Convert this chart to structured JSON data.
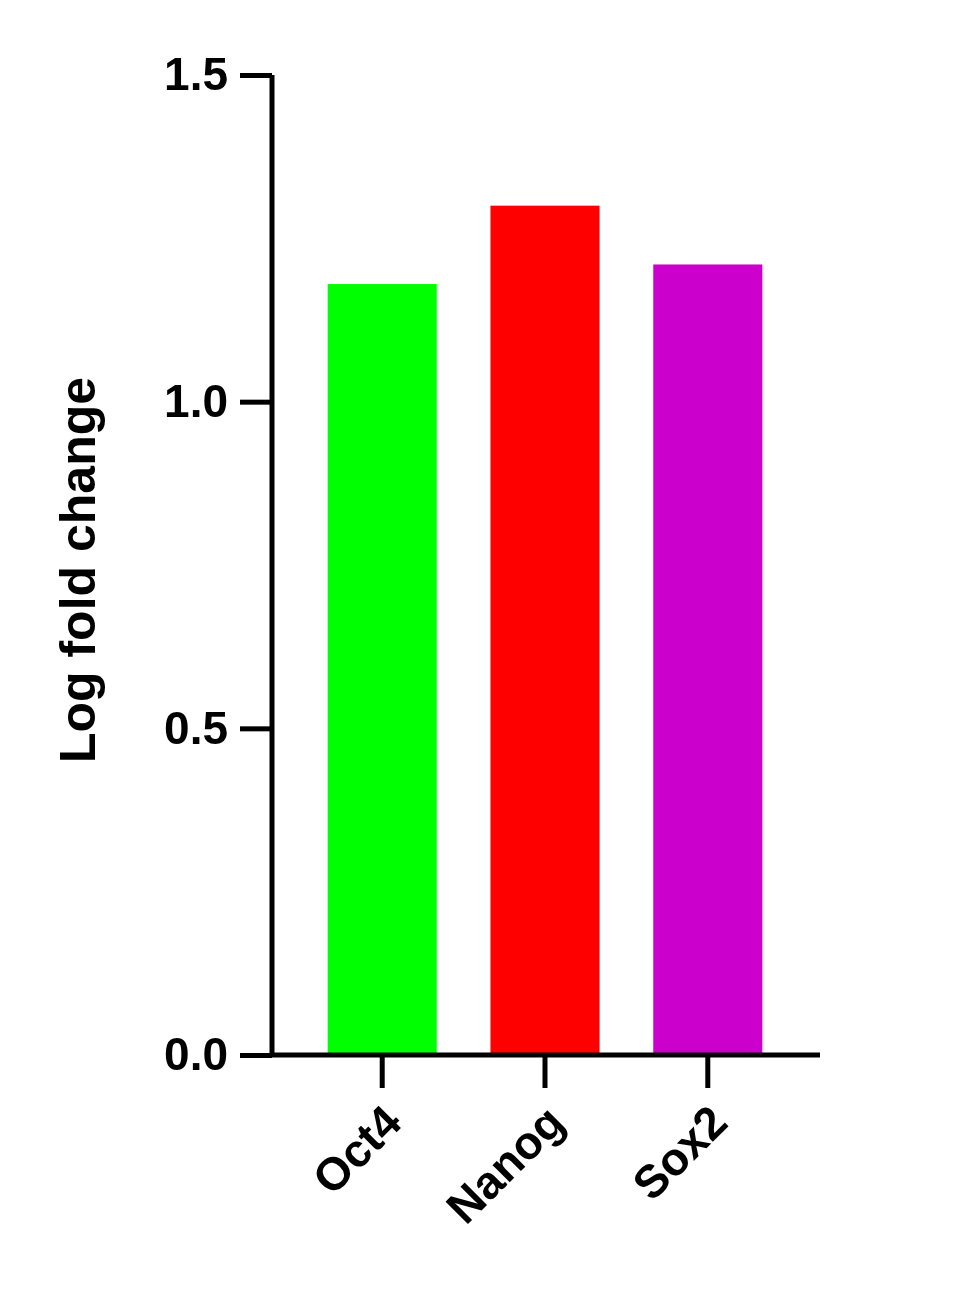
{
  "chart_data": {
    "type": "bar",
    "ylabel": "Log fold change",
    "categories": [
      "Oct4",
      "Nanog",
      "Sox2"
    ],
    "values": [
      1.18,
      1.3,
      1.21
    ],
    "colors": [
      "#00ff00",
      "#ff0000",
      "#cc00cc"
    ],
    "ylim": [
      0,
      1.5
    ],
    "yticks": [
      {
        "value": 0,
        "label": "0.0"
      },
      {
        "value": 0.5,
        "label": "0.5"
      },
      {
        "value": 1,
        "label": "1.0"
      },
      {
        "value": 1.5,
        "label": "1.5"
      }
    ],
    "grid": false
  }
}
